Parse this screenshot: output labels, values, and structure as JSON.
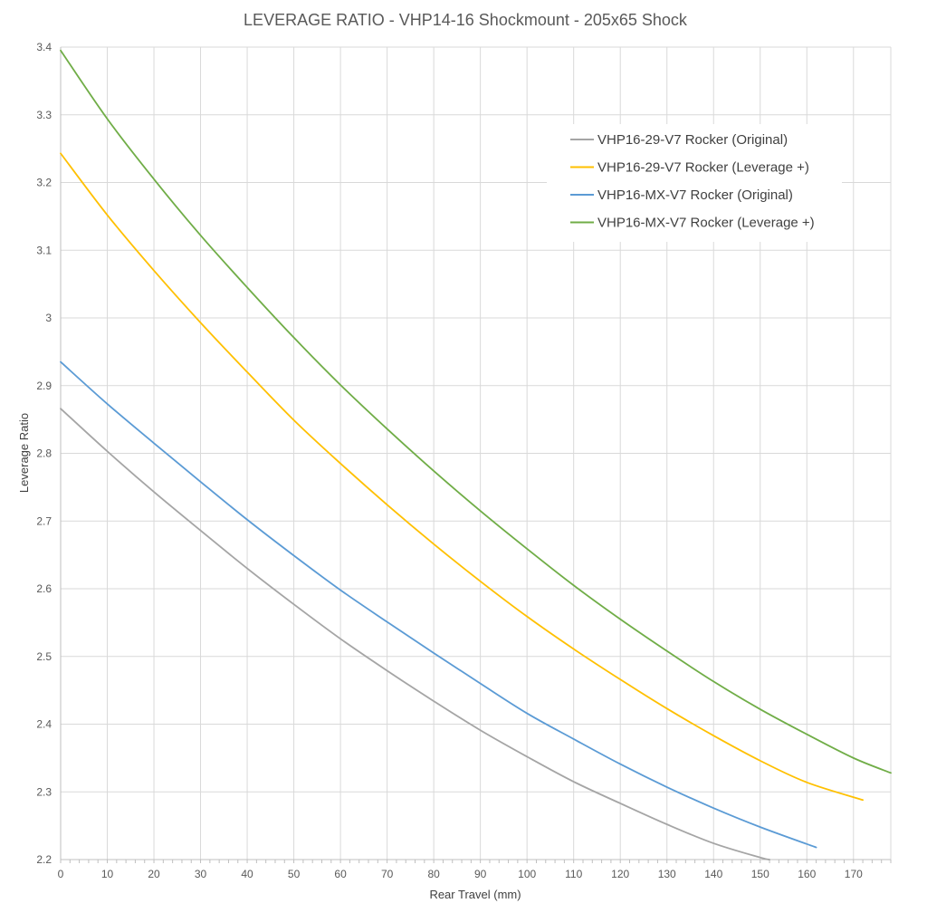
{
  "chart_data": {
    "type": "line",
    "title": "LEVERAGE RATIO - VHP14-16 Shockmount - 205x65 Shock",
    "xlabel": "Rear Travel (mm)",
    "ylabel": "Leverage Ratio",
    "xlim": [
      0,
      178
    ],
    "ylim": [
      2.2,
      3.4
    ],
    "xticks": [
      0,
      10,
      20,
      30,
      40,
      50,
      60,
      70,
      80,
      90,
      100,
      110,
      120,
      130,
      140,
      150,
      160,
      170
    ],
    "xtick_labels": [
      "0",
      "10",
      "20",
      "30",
      "40",
      "50",
      "60",
      "70",
      "80",
      "90",
      "100",
      "110",
      "120",
      "130",
      "140",
      "150",
      "160",
      "170"
    ],
    "yticks": [
      2.2,
      2.3,
      2.4,
      2.5,
      2.6,
      2.7,
      2.8,
      2.9,
      3.0,
      3.1,
      3.2,
      3.3,
      3.4
    ],
    "ytick_labels": [
      "2.2",
      "2.3",
      "2.4",
      "2.5",
      "2.6",
      "2.7",
      "2.8",
      "2.9",
      "3",
      "3.1",
      "3.2",
      "3.3",
      "3.4"
    ],
    "grid": true,
    "legend_position": "top-right",
    "series": [
      {
        "name": "VHP16-29-V7 Rocker (Original)",
        "color": "#a5a5a5",
        "x": [
          0,
          10,
          20,
          30,
          40,
          50,
          60,
          70,
          80,
          90,
          100,
          110,
          120,
          130,
          140,
          150,
          152
        ],
        "y": [
          2.866,
          2.803,
          2.743,
          2.686,
          2.63,
          2.577,
          2.526,
          2.479,
          2.434,
          2.391,
          2.352,
          2.315,
          2.283,
          2.252,
          2.224,
          2.203,
          2.2
        ]
      },
      {
        "name": "VHP16-29-V7 Rocker (Leverage +)",
        "color": "#ffc000",
        "x": [
          0,
          10,
          20,
          30,
          40,
          50,
          60,
          70,
          80,
          90,
          100,
          110,
          120,
          130,
          140,
          150,
          160,
          172
        ],
        "y": [
          3.243,
          3.152,
          3.07,
          2.993,
          2.92,
          2.849,
          2.785,
          2.724,
          2.666,
          2.611,
          2.559,
          2.511,
          2.466,
          2.423,
          2.383,
          2.346,
          2.314,
          2.288
        ]
      },
      {
        "name": "VHP16-MX-V7 Rocker (Original)",
        "color": "#5b9bd5",
        "x": [
          0,
          10,
          20,
          30,
          40,
          50,
          60,
          70,
          80,
          90,
          100,
          110,
          120,
          130,
          140,
          150,
          162
        ],
        "y": [
          2.935,
          2.873,
          2.815,
          2.758,
          2.702,
          2.649,
          2.598,
          2.551,
          2.505,
          2.46,
          2.416,
          2.378,
          2.341,
          2.307,
          2.276,
          2.248,
          2.218
        ]
      },
      {
        "name": "VHP16-MX-V7 Rocker (Leverage +)",
        "color": "#70ad47",
        "x": [
          0,
          10,
          20,
          30,
          40,
          50,
          60,
          70,
          80,
          90,
          100,
          110,
          120,
          130,
          140,
          150,
          160,
          170,
          178
        ],
        "y": [
          3.395,
          3.294,
          3.205,
          3.122,
          3.045,
          2.971,
          2.901,
          2.836,
          2.774,
          2.715,
          2.659,
          2.605,
          2.555,
          2.508,
          2.463,
          2.422,
          2.385,
          2.35,
          2.328
        ]
      }
    ]
  }
}
